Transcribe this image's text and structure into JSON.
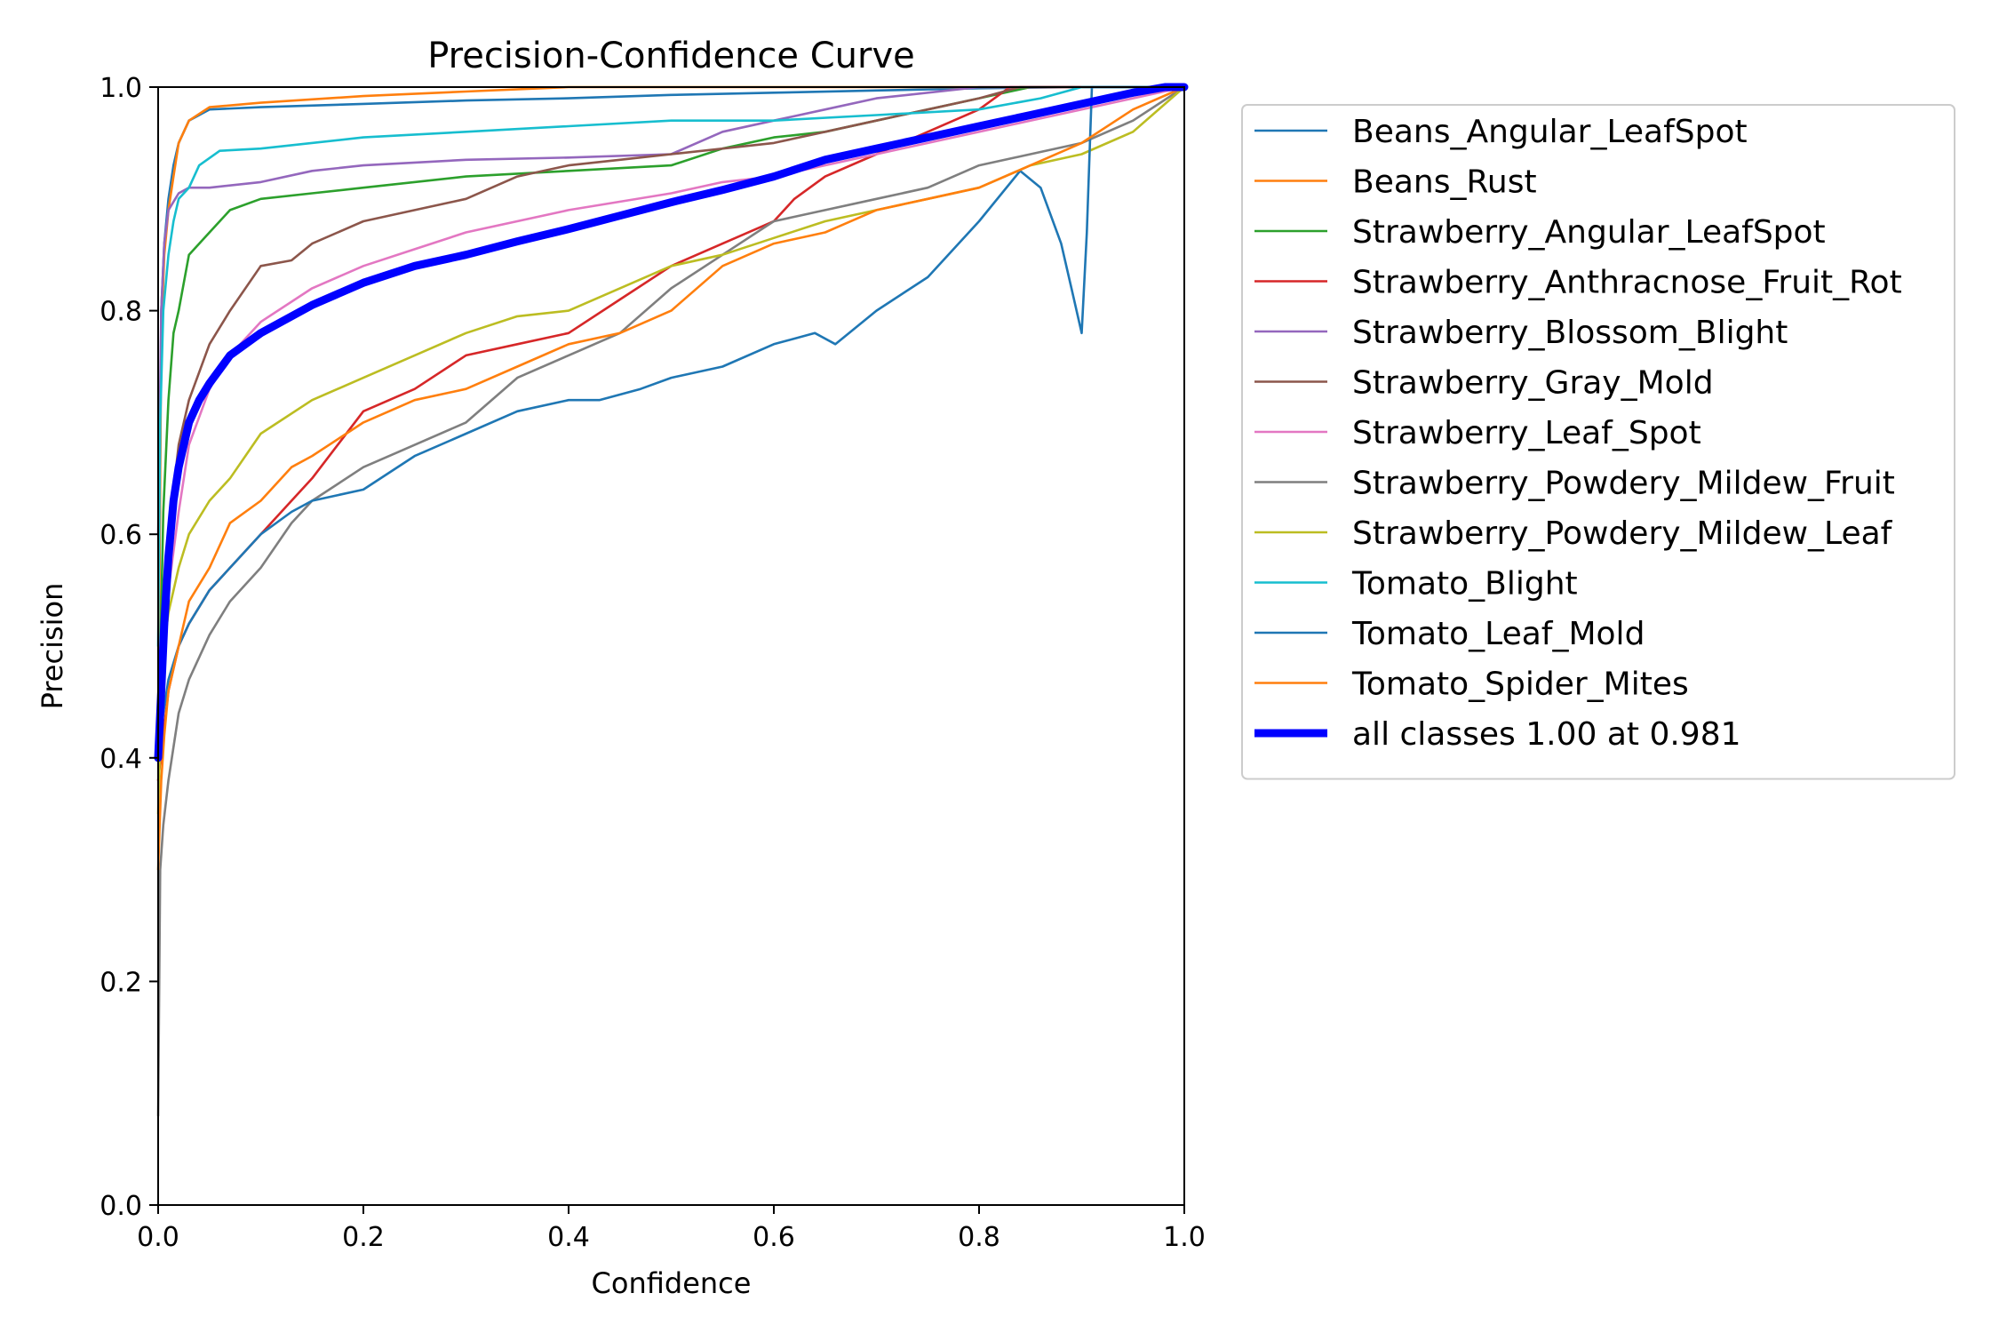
{
  "chart_data": {
    "type": "line",
    "title": "Precision-Confidence Curve",
    "xlabel": "Confidence",
    "ylabel": "Precision",
    "xlim": [
      0,
      1
    ],
    "ylim": [
      0,
      1
    ],
    "xticks": [
      "0.0",
      "0.2",
      "0.4",
      "0.6",
      "0.8",
      "1.0"
    ],
    "yticks": [
      "0.0",
      "0.2",
      "0.4",
      "0.6",
      "0.8",
      "1.0"
    ],
    "grid": false,
    "legend_position": "outside-right",
    "series": [
      {
        "name": "Beans_Angular_LeafSpot",
        "color": "#1f77b4",
        "x": [
          0.0,
          0.003,
          0.006,
          0.01,
          0.015,
          0.02,
          0.03,
          0.05,
          0.1,
          0.2,
          0.3,
          0.4,
          0.5,
          0.6,
          0.7,
          0.8,
          0.9,
          1.0
        ],
        "y": [
          0.42,
          0.8,
          0.86,
          0.9,
          0.93,
          0.95,
          0.97,
          0.98,
          0.982,
          0.985,
          0.988,
          0.99,
          0.993,
          0.995,
          0.997,
          0.999,
          1.0,
          1.0
        ]
      },
      {
        "name": "Beans_Rust",
        "color": "#ff7f0e",
        "x": [
          0.0,
          0.003,
          0.006,
          0.01,
          0.015,
          0.02,
          0.03,
          0.05,
          0.1,
          0.2,
          0.3,
          0.4,
          0.5,
          0.6,
          0.7,
          0.8,
          0.9,
          1.0
        ],
        "y": [
          0.4,
          0.78,
          0.85,
          0.89,
          0.92,
          0.95,
          0.97,
          0.982,
          0.986,
          0.992,
          0.996,
          1.0,
          1.0,
          1.0,
          1.0,
          1.0,
          1.0,
          1.0
        ]
      },
      {
        "name": "Strawberry_Angular_LeafSpot",
        "color": "#2ca02c",
        "x": [
          0.0,
          0.005,
          0.01,
          0.015,
          0.02,
          0.03,
          0.05,
          0.07,
          0.1,
          0.15,
          0.2,
          0.3,
          0.4,
          0.5,
          0.55,
          0.6,
          0.65,
          0.7,
          0.75,
          0.8,
          0.85,
          0.9,
          1.0
        ],
        "y": [
          0.4,
          0.62,
          0.72,
          0.78,
          0.8,
          0.85,
          0.87,
          0.89,
          0.9,
          0.905,
          0.91,
          0.92,
          0.925,
          0.93,
          0.945,
          0.955,
          0.96,
          0.97,
          0.98,
          0.99,
          1.0,
          1.0,
          1.0
        ]
      },
      {
        "name": "Strawberry_Anthracnose_Fruit_Rot",
        "color": "#d62728",
        "x": [
          0.0,
          0.005,
          0.01,
          0.02,
          0.03,
          0.05,
          0.07,
          0.1,
          0.13,
          0.15,
          0.2,
          0.25,
          0.3,
          0.35,
          0.4,
          0.45,
          0.5,
          0.55,
          0.6,
          0.62,
          0.65,
          0.7,
          0.75,
          0.8,
          0.83,
          1.0
        ],
        "y": [
          0.38,
          0.42,
          0.46,
          0.5,
          0.52,
          0.55,
          0.57,
          0.6,
          0.63,
          0.65,
          0.71,
          0.73,
          0.76,
          0.77,
          0.78,
          0.81,
          0.84,
          0.86,
          0.88,
          0.9,
          0.92,
          0.94,
          0.96,
          0.98,
          1.0,
          1.0
        ]
      },
      {
        "name": "Strawberry_Blossom_Blight",
        "color": "#9467bd",
        "x": [
          0.0,
          0.003,
          0.006,
          0.01,
          0.02,
          0.03,
          0.05,
          0.1,
          0.15,
          0.2,
          0.3,
          0.4,
          0.5,
          0.55,
          0.6,
          0.65,
          0.7,
          0.8,
          1.0
        ],
        "y": [
          0.6,
          0.8,
          0.86,
          0.89,
          0.905,
          0.91,
          0.91,
          0.915,
          0.925,
          0.93,
          0.935,
          0.937,
          0.94,
          0.96,
          0.97,
          0.98,
          0.99,
          1.0,
          1.0
        ]
      },
      {
        "name": "Strawberry_Gray_Mold",
        "color": "#8c564b",
        "x": [
          0.0,
          0.005,
          0.01,
          0.02,
          0.03,
          0.05,
          0.07,
          0.1,
          0.13,
          0.15,
          0.2,
          0.25,
          0.3,
          0.35,
          0.4,
          0.45,
          0.5,
          0.6,
          0.65,
          0.7,
          0.75,
          0.8,
          0.84,
          1.0
        ],
        "y": [
          0.42,
          0.52,
          0.6,
          0.68,
          0.72,
          0.77,
          0.8,
          0.84,
          0.845,
          0.86,
          0.88,
          0.89,
          0.9,
          0.92,
          0.93,
          0.935,
          0.94,
          0.95,
          0.96,
          0.97,
          0.98,
          0.99,
          1.0,
          1.0
        ]
      },
      {
        "name": "Strawberry_Leaf_Spot",
        "color": "#e377c2",
        "x": [
          0.0,
          0.005,
          0.01,
          0.02,
          0.03,
          0.05,
          0.07,
          0.1,
          0.15,
          0.2,
          0.25,
          0.3,
          0.4,
          0.5,
          0.55,
          0.6,
          0.7,
          0.8,
          0.9,
          1.0
        ],
        "y": [
          0.4,
          0.48,
          0.55,
          0.62,
          0.68,
          0.73,
          0.76,
          0.79,
          0.82,
          0.84,
          0.855,
          0.87,
          0.89,
          0.905,
          0.915,
          0.92,
          0.94,
          0.96,
          0.98,
          1.0
        ]
      },
      {
        "name": "Strawberry_Powdery_Mildew_Fruit",
        "color": "#7f7f7f",
        "x": [
          0.0,
          0.002,
          0.005,
          0.01,
          0.02,
          0.03,
          0.05,
          0.07,
          0.1,
          0.13,
          0.15,
          0.2,
          0.25,
          0.3,
          0.35,
          0.4,
          0.45,
          0.5,
          0.55,
          0.6,
          0.65,
          0.7,
          0.75,
          0.8,
          0.85,
          0.9,
          0.95,
          1.0
        ],
        "y": [
          0.08,
          0.3,
          0.34,
          0.38,
          0.44,
          0.47,
          0.51,
          0.54,
          0.57,
          0.61,
          0.63,
          0.66,
          0.68,
          0.7,
          0.74,
          0.76,
          0.78,
          0.82,
          0.85,
          0.88,
          0.89,
          0.9,
          0.91,
          0.93,
          0.94,
          0.95,
          0.97,
          1.0
        ]
      },
      {
        "name": "Strawberry_Powdery_Mildew_Leaf",
        "color": "#bcbd22",
        "x": [
          0.0,
          0.003,
          0.006,
          0.01,
          0.02,
          0.03,
          0.05,
          0.07,
          0.1,
          0.15,
          0.2,
          0.25,
          0.3,
          0.35,
          0.4,
          0.45,
          0.5,
          0.55,
          0.6,
          0.65,
          0.7,
          0.75,
          0.8,
          0.85,
          0.9,
          0.95,
          1.0
        ],
        "y": [
          0.35,
          0.45,
          0.5,
          0.53,
          0.57,
          0.6,
          0.63,
          0.65,
          0.69,
          0.72,
          0.74,
          0.76,
          0.78,
          0.795,
          0.8,
          0.82,
          0.84,
          0.85,
          0.865,
          0.88,
          0.89,
          0.9,
          0.91,
          0.93,
          0.94,
          0.96,
          1.0
        ]
      },
      {
        "name": "Tomato_Blight",
        "color": "#17becf",
        "x": [
          0.0,
          0.002,
          0.005,
          0.01,
          0.015,
          0.02,
          0.03,
          0.04,
          0.06,
          0.1,
          0.2,
          0.3,
          0.4,
          0.5,
          0.6,
          0.7,
          0.8,
          0.86,
          0.9,
          1.0
        ],
        "y": [
          0.5,
          0.7,
          0.8,
          0.85,
          0.88,
          0.9,
          0.91,
          0.93,
          0.943,
          0.945,
          0.955,
          0.96,
          0.965,
          0.97,
          0.97,
          0.975,
          0.98,
          0.99,
          1.0,
          1.0
        ]
      },
      {
        "name": "Tomato_Leaf_Mold",
        "color": "#1f77b4",
        "x": [
          0.0,
          0.005,
          0.01,
          0.02,
          0.03,
          0.05,
          0.07,
          0.1,
          0.13,
          0.15,
          0.2,
          0.25,
          0.3,
          0.35,
          0.4,
          0.43,
          0.47,
          0.5,
          0.55,
          0.6,
          0.64,
          0.66,
          0.7,
          0.75,
          0.8,
          0.84,
          0.86,
          0.88,
          0.89,
          0.9,
          0.905,
          0.91,
          1.0
        ],
        "y": [
          0.4,
          0.44,
          0.47,
          0.5,
          0.52,
          0.55,
          0.57,
          0.6,
          0.62,
          0.63,
          0.64,
          0.67,
          0.69,
          0.71,
          0.72,
          0.72,
          0.73,
          0.74,
          0.75,
          0.77,
          0.78,
          0.77,
          0.8,
          0.83,
          0.88,
          0.925,
          0.91,
          0.86,
          0.82,
          0.78,
          0.87,
          1.0,
          1.0
        ]
      },
      {
        "name": "Tomato_Spider_Mites",
        "color": "#ff7f0e",
        "x": [
          0.0,
          0.003,
          0.006,
          0.01,
          0.02,
          0.03,
          0.05,
          0.07,
          0.1,
          0.13,
          0.15,
          0.2,
          0.25,
          0.3,
          0.35,
          0.4,
          0.45,
          0.5,
          0.55,
          0.6,
          0.65,
          0.7,
          0.75,
          0.8,
          0.85,
          0.9,
          0.95,
          1.0
        ],
        "y": [
          0.3,
          0.38,
          0.42,
          0.46,
          0.5,
          0.54,
          0.57,
          0.61,
          0.63,
          0.66,
          0.67,
          0.7,
          0.72,
          0.73,
          0.75,
          0.77,
          0.78,
          0.8,
          0.84,
          0.86,
          0.87,
          0.89,
          0.9,
          0.91,
          0.93,
          0.95,
          0.98,
          1.0
        ]
      },
      {
        "name": "all classes 1.00 at 0.981",
        "color": "#0000ff",
        "bold": true,
        "x": [
          0.0,
          0.003,
          0.006,
          0.01,
          0.015,
          0.02,
          0.03,
          0.04,
          0.05,
          0.07,
          0.1,
          0.15,
          0.2,
          0.25,
          0.3,
          0.35,
          0.4,
          0.45,
          0.5,
          0.55,
          0.6,
          0.65,
          0.7,
          0.75,
          0.8,
          0.85,
          0.9,
          0.95,
          0.981,
          1.0
        ],
        "y": [
          0.4,
          0.46,
          0.52,
          0.58,
          0.63,
          0.66,
          0.7,
          0.72,
          0.735,
          0.76,
          0.78,
          0.805,
          0.825,
          0.84,
          0.85,
          0.862,
          0.873,
          0.885,
          0.897,
          0.908,
          0.92,
          0.935,
          0.945,
          0.955,
          0.965,
          0.975,
          0.985,
          0.995,
          1.0,
          1.0
        ]
      }
    ]
  }
}
